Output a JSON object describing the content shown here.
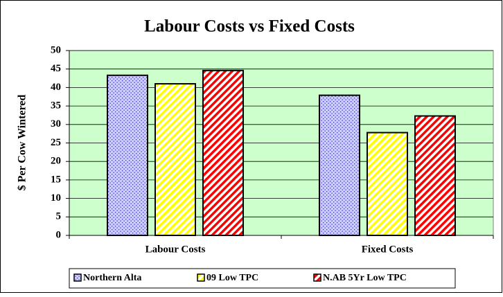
{
  "chart_data": {
    "type": "bar",
    "title": "Labour Costs vs Fixed Costs",
    "y_label": "$ Per Cow Wintered",
    "categories": [
      "Labour Costs",
      "Fixed Costs"
    ],
    "series": [
      {
        "name": "Northern Alta",
        "color": "#3333cc",
        "pattern": "dots",
        "values": [
          43.3,
          37.9
        ]
      },
      {
        "name": "09 Low TPC",
        "color": "#ffff00",
        "pattern": "stripes",
        "values": [
          41,
          27.8
        ]
      },
      {
        "name": "N.AB 5Yr Low TPC",
        "color": "#ff0000",
        "pattern": "stripes",
        "values": [
          44.6,
          32.3
        ]
      }
    ],
    "ylim": [
      0,
      50
    ],
    "yticks": [
      0,
      5,
      10,
      15,
      20,
      25,
      30,
      35,
      40,
      45,
      50
    ],
    "grid": true,
    "legend": "bottom"
  }
}
